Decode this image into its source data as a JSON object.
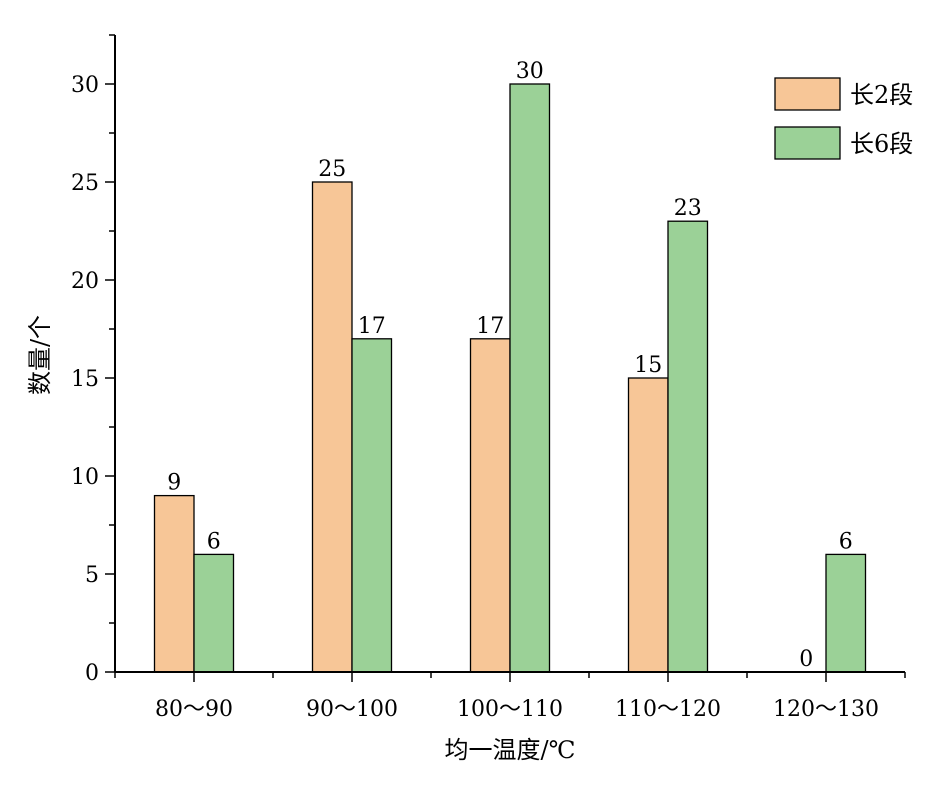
{
  "chart_data": {
    "type": "bar",
    "categories": [
      "80～90",
      "90～100",
      "100～110",
      "110～120",
      "120～130"
    ],
    "series": [
      {
        "name": "长2段",
        "values": [
          9,
          25,
          17,
          15,
          0
        ],
        "color": "#f7c697"
      },
      {
        "name": "长6段",
        "values": [
          6,
          17,
          30,
          23,
          6
        ],
        "color": "#9bd197"
      }
    ],
    "xlabel": "均一温度/℃",
    "ylabel": "数量/个",
    "ylim": [
      0,
      32.5
    ],
    "yticks": [
      0,
      5,
      10,
      15,
      20,
      25,
      30
    ],
    "grid": false,
    "legend_position": "top-right",
    "data_labels": true
  }
}
